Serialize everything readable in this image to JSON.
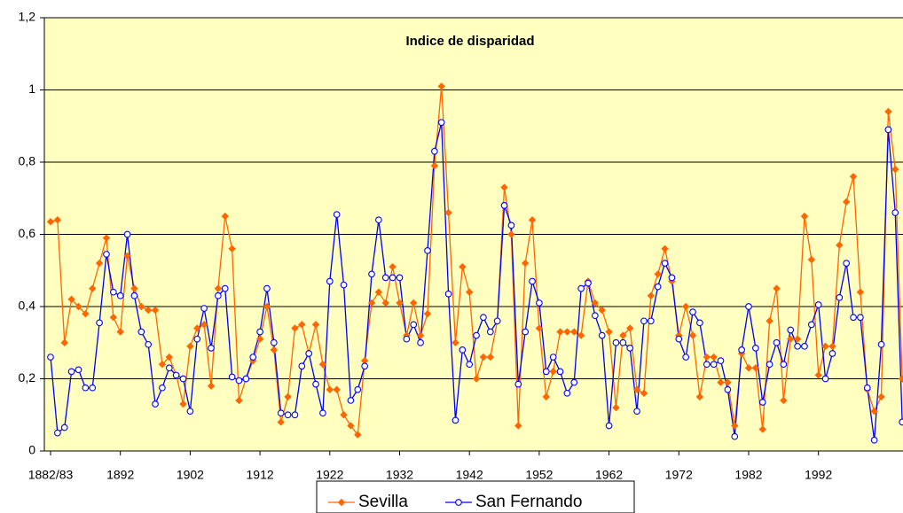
{
  "chart_data": {
    "type": "line",
    "title": "Indice de disparidad",
    "categories": [
      "1882/83",
      null,
      null,
      null,
      null,
      null,
      null,
      null,
      null,
      null,
      "1892",
      null,
      null,
      null,
      null,
      null,
      null,
      null,
      null,
      null,
      "1902",
      null,
      null,
      null,
      null,
      null,
      null,
      null,
      null,
      null,
      "1912",
      null,
      null,
      null,
      null,
      null,
      null,
      null,
      null,
      null,
      "1922",
      null,
      null,
      null,
      null,
      null,
      null,
      null,
      null,
      null,
      "1932",
      null,
      null,
      null,
      null,
      null,
      null,
      null,
      null,
      null,
      "1942",
      null,
      null,
      null,
      null,
      null,
      null,
      null,
      null,
      null,
      "1952",
      null,
      null,
      null,
      null,
      null,
      null,
      null,
      null,
      null,
      "1962",
      null,
      null,
      null,
      null,
      null,
      null,
      null,
      null,
      null,
      "1972",
      null,
      null,
      null,
      null,
      null,
      null,
      null,
      null,
      null,
      "1982",
      null,
      null,
      null,
      null,
      null,
      null,
      null,
      null,
      null,
      "1992",
      null,
      null,
      null,
      null,
      null,
      null,
      null,
      null,
      null,
      null,
      null,
      null
    ],
    "series": [
      {
        "name": "Sevilla",
        "color": "#ff6600",
        "marker": "diamond",
        "values": [
          0.635,
          0.64,
          0.3,
          0.42,
          0.4,
          0.38,
          0.45,
          0.52,
          0.59,
          0.37,
          0.33,
          0.54,
          0.45,
          0.4,
          0.39,
          0.39,
          0.24,
          0.26,
          0.21,
          0.13,
          0.29,
          0.34,
          0.35,
          0.18,
          0.45,
          0.65,
          0.56,
          0.14,
          0.2,
          0.25,
          0.31,
          0.4,
          0.28,
          0.08,
          0.15,
          0.34,
          0.35,
          0.27,
          0.35,
          0.24,
          0.17,
          0.17,
          0.1,
          0.07,
          0.045,
          0.25,
          0.41,
          0.44,
          0.41,
          0.51,
          0.41,
          0.32,
          0.41,
          0.32,
          0.38,
          0.79,
          1.01,
          0.66,
          0.3,
          0.51,
          0.44,
          0.2,
          0.26,
          0.26,
          0.36,
          0.73,
          0.6,
          0.07,
          0.52,
          0.64,
          0.34,
          0.15,
          0.22,
          0.33,
          0.33,
          0.33,
          0.32,
          0.47,
          0.41,
          0.39,
          0.33,
          0.12,
          0.32,
          0.34,
          0.17,
          0.16,
          0.43,
          0.49,
          0.56,
          0.47,
          0.32,
          0.4,
          0.32,
          0.15,
          0.26,
          0.26,
          0.19,
          0.19,
          0.07,
          0.27,
          0.23,
          0.23,
          0.06,
          0.36,
          0.45,
          0.14,
          0.31,
          0.31,
          0.65,
          0.53,
          0.21,
          0.29,
          0.29,
          0.57,
          0.69,
          0.76,
          0.44,
          0.17,
          0.11,
          0.15,
          0.94,
          0.78,
          0.2
        ]
      },
      {
        "name": "San Fernando",
        "color": "#0000ff",
        "marker": "circle",
        "values": [
          0.26,
          0.05,
          0.065,
          0.22,
          0.225,
          0.175,
          0.175,
          0.355,
          0.545,
          0.44,
          0.43,
          0.6,
          0.43,
          0.33,
          0.295,
          0.13,
          0.175,
          0.23,
          0.21,
          0.2,
          0.11,
          0.31,
          0.395,
          0.285,
          0.43,
          0.45,
          0.205,
          0.195,
          0.2,
          0.26,
          0.33,
          0.45,
          0.3,
          0.105,
          0.1,
          0.1,
          0.235,
          0.27,
          0.185,
          0.105,
          0.47,
          0.655,
          0.46,
          0.14,
          0.17,
          0.235,
          0.49,
          0.64,
          0.48,
          0.48,
          0.48,
          0.31,
          0.35,
          0.3,
          0.555,
          0.83,
          0.91,
          0.435,
          0.085,
          0.28,
          0.24,
          0.32,
          0.37,
          0.33,
          0.36,
          0.68,
          0.625,
          0.185,
          0.33,
          0.47,
          0.41,
          0.22,
          0.26,
          0.22,
          0.16,
          0.19,
          0.45,
          0.465,
          0.375,
          0.32,
          0.07,
          0.3,
          0.3,
          0.285,
          0.11,
          0.36,
          0.36,
          0.455,
          0.52,
          0.48,
          0.31,
          0.26,
          0.385,
          0.355,
          0.24,
          0.24,
          0.25,
          0.17,
          0.04,
          0.28,
          0.4,
          0.285,
          0.135,
          0.24,
          0.3,
          0.24,
          0.335,
          0.29,
          0.29,
          0.35,
          0.405,
          0.2,
          0.27,
          0.425,
          0.52,
          0.37,
          0.37,
          0.175,
          0.03,
          0.295,
          0.89,
          0.66,
          0.08
        ]
      }
    ],
    "ylim": [
      0,
      1.2
    ],
    "yticks": [
      0,
      {
        "value": 0.2,
        "label": "0,2"
      },
      {
        "value": 0.4,
        "label": "0,4"
      },
      {
        "value": 0.6,
        "label": "0,6"
      },
      {
        "value": 0.8,
        "label": "0,8"
      },
      1,
      {
        "value": 1.2,
        "label": "1,2"
      }
    ],
    "grid": true,
    "plot_background": "#ffffc0",
    "legend": "bottom"
  }
}
